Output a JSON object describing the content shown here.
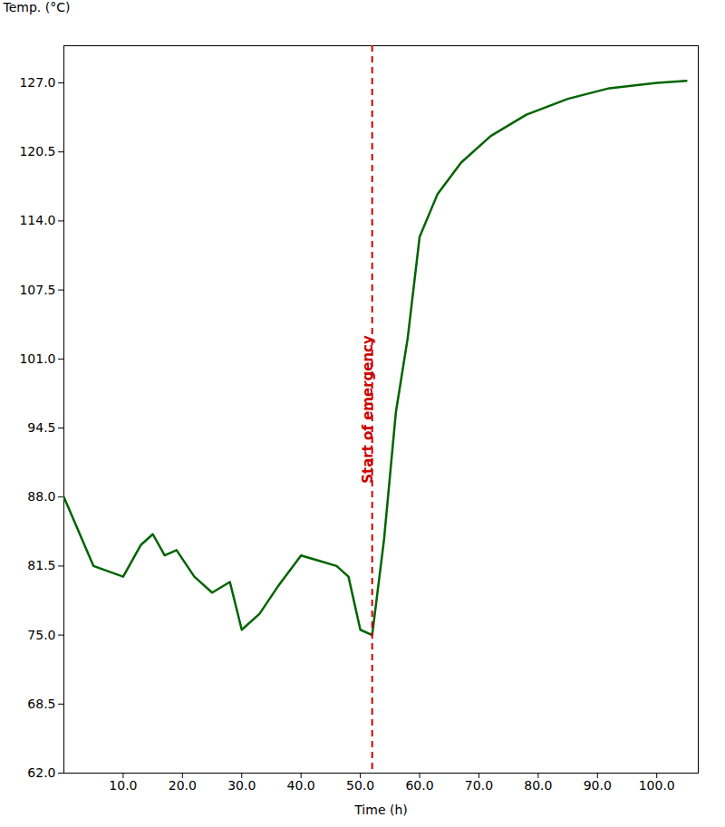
{
  "chart_data": {
    "type": "line",
    "xlabel": "Time (h)",
    "ylabel": "Temp. (°C)",
    "x": [
      0,
      5,
      10,
      13,
      15,
      17,
      19,
      22,
      25,
      28,
      30,
      33,
      36,
      40,
      43,
      46,
      48,
      50,
      52,
      54,
      56,
      58,
      60,
      63,
      67,
      72,
      78,
      85,
      92,
      100,
      105
    ],
    "series": [
      {
        "name": "Temp. (°C)",
        "color": "#006400",
        "values": [
          88.0,
          81.5,
          80.5,
          83.5,
          84.5,
          82.5,
          83.0,
          80.5,
          79.0,
          80.0,
          75.5,
          77.0,
          79.5,
          82.5,
          82.0,
          81.5,
          80.5,
          75.5,
          75.0,
          84.0,
          96.0,
          103.0,
          112.5,
          116.5,
          119.5,
          122.0,
          124.0,
          125.5,
          126.5,
          127.0,
          127.2
        ]
      }
    ],
    "xlim": [
      0,
      107
    ],
    "ylim": [
      62.0,
      130.5
    ],
    "xticks": [
      {
        "value": 10,
        "label": "10.0"
      },
      {
        "value": 20,
        "label": "20.0"
      },
      {
        "value": 30,
        "label": "30.0"
      },
      {
        "value": 40,
        "label": "40.0"
      },
      {
        "value": 50,
        "label": "50.0"
      },
      {
        "value": 60,
        "label": "60.0"
      },
      {
        "value": 70,
        "label": "70.0"
      },
      {
        "value": 80,
        "label": "80.0"
      },
      {
        "value": 90,
        "label": "90.0"
      },
      {
        "value": 100,
        "label": "100.0"
      }
    ],
    "yticks": [
      {
        "value": 62,
        "label": "62.0"
      },
      68.5,
      {
        "value": 75,
        "label": "75.0"
      },
      81.5,
      {
        "value": 88,
        "label": "88.0"
      },
      94.5,
      {
        "value": 101,
        "label": "101.0"
      },
      107.5,
      {
        "value": 114,
        "label": "114.0"
      },
      120.5,
      {
        "value": 127,
        "label": "127.0"
      }
    ],
    "grid": false,
    "annotations": [
      {
        "type": "vline",
        "x": 52,
        "text": "Start of emergency",
        "color": "#cc0000",
        "line_style": "dashed"
      }
    ]
  }
}
